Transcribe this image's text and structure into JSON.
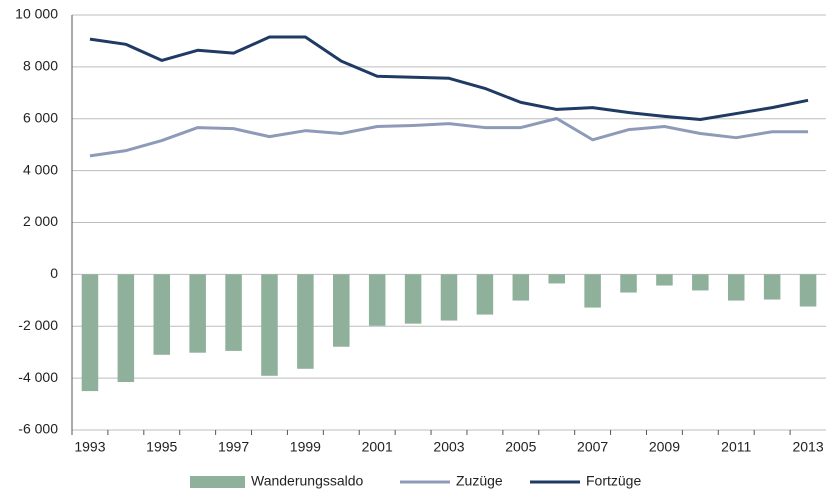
{
  "chart_data": {
    "type": "bar-line",
    "categories": [
      "1993",
      null,
      "1995",
      null,
      "1997",
      null,
      "1999",
      null,
      "2001",
      null,
      "2003",
      null,
      "2005",
      null,
      "2007",
      null,
      "2009",
      null,
      "2011",
      null,
      "2013"
    ],
    "series": [
      {
        "name": "Wanderungssaldo",
        "type": "bar",
        "color": "#8fb09b",
        "values": [
          -4500,
          -4150,
          -3100,
          -3020,
          -2950,
          -3910,
          -3640,
          -2790,
          -1980,
          -1900,
          -1780,
          -1550,
          -1010,
          -350,
          -1280,
          -700,
          -430,
          -620,
          -1010,
          -970,
          -1240
        ]
      },
      {
        "name": "Zuzüge",
        "type": "line",
        "color": "#8e9bb8",
        "values": [
          4570,
          4770,
          5160,
          5660,
          5620,
          5310,
          5540,
          5430,
          5700,
          5740,
          5810,
          5660,
          5660,
          6010,
          5190,
          5580,
          5700,
          5430,
          5270,
          5500,
          5500
        ]
      },
      {
        "name": "Fortzüge",
        "type": "line",
        "color": "#1f3a63",
        "values": [
          9070,
          8870,
          8250,
          8640,
          8530,
          9150,
          9150,
          8220,
          7640,
          7600,
          7560,
          7170,
          6630,
          6360,
          6430,
          6240,
          6090,
          5970,
          6200,
          6430,
          6710
        ]
      }
    ],
    "ylim": [
      -6000,
      10000
    ],
    "yticks": [
      {
        "value": -6000,
        "label": "-6 000"
      },
      {
        "value": -4000,
        "label": "-4 000"
      },
      {
        "value": -2000,
        "label": "-2 000"
      },
      0,
      {
        "value": 2000,
        "label": "2 000"
      },
      {
        "value": 4000,
        "label": "4 000"
      },
      {
        "value": 6000,
        "label": "6 000"
      },
      {
        "value": 8000,
        "label": "8 000"
      },
      {
        "value": 10000,
        "label": "10 000"
      }
    ],
    "grid": true
  }
}
